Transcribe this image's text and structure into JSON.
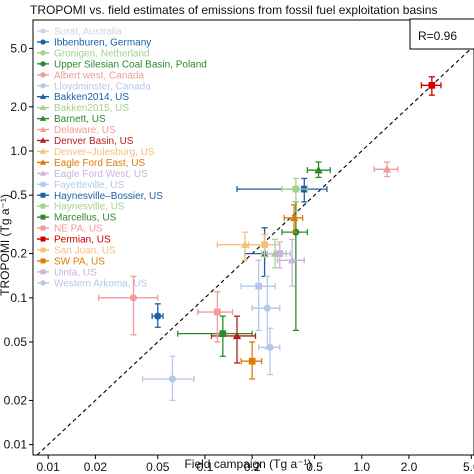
{
  "chart_data": {
    "type": "scatter",
    "title": "TROPOMI vs. field estimates of emissions from fossil fuel exploitation basins",
    "xlabel": "Field campaign (Tg a⁻¹)",
    "ylabel": "TROPOMI (Tg a⁻¹)",
    "x_scale": "log",
    "y_scale": "log",
    "xlim": [
      0.008,
      5.2
    ],
    "ylim": [
      0.0085,
      7.8
    ],
    "x_ticks": [
      0.01,
      0.02,
      0.05,
      0.1,
      0.2,
      0.5,
      1.0,
      2.0,
      5.0
    ],
    "x_tick_labels": [
      "0.01",
      "0.02",
      "0.05",
      "0.1",
      "0.2",
      "0.5",
      "1.0",
      "2.0",
      "5.0"
    ],
    "y_ticks": [
      0.01,
      0.02,
      0.05,
      0.1,
      0.2,
      0.5,
      1.0,
      2.0,
      5.0
    ],
    "y_tick_labels": [
      "0.01",
      "0.02",
      "0.05",
      "0.1",
      "0.2",
      "0.5",
      "1.0",
      "2.0",
      "5.0"
    ],
    "reference_line": "1:1",
    "annotation": "R=0.96",
    "legend_position": "top-left",
    "grid": false,
    "series": [
      {
        "name": "Surat, Australia",
        "color": "#c8d6ea",
        "marker": "circle",
        "points": []
      },
      {
        "name": "Ibbenburen, Germany",
        "color": "#1f5fa8",
        "marker": "circle",
        "points": [
          {
            "x": 0.05,
            "y": 0.075,
            "xerr": [
              0.046,
              0.054
            ],
            "yerr": [
              0.063,
              0.091
            ]
          }
        ]
      },
      {
        "name": "Gronigen, Netherland",
        "color": "#a6d28c",
        "marker": "circle",
        "points": []
      },
      {
        "name": "Upper Silesian Coal Basin, Poland",
        "color": "#2a8a2a",
        "marker": "circle",
        "points": [
          {
            "x": 0.38,
            "y": 0.28,
            "xerr": [
              0.31,
              0.45
            ],
            "yerr": [
              0.06,
              0.45
            ]
          }
        ]
      },
      {
        "name": "Albert west, Canada",
        "color": "#f19a9a",
        "marker": "circle",
        "points": [
          {
            "x": 0.035,
            "y": 0.1,
            "xerr": [
              0.021,
              0.05
            ],
            "yerr": [
              0.056,
              0.14
            ]
          }
        ]
      },
      {
        "name": "Lloydminster, Canada",
        "color": "#b3c8ea",
        "marker": "circle",
        "points": [
          {
            "x": 0.062,
            "y": 0.028,
            "xerr": [
              0.04,
              0.085
            ],
            "yerr": [
              0.02,
              0.04
            ]
          }
        ]
      },
      {
        "name": "Bakken2014, US",
        "color": "#1f5fa8",
        "marker": "triangle",
        "points": [
          {
            "x": 0.24,
            "y": 0.2,
            "xerr": [
              0.18,
              0.3
            ],
            "yerr": [
              0.14,
              0.3
            ]
          }
        ]
      },
      {
        "name": "Bakken2015, US",
        "color": "#a6d28c",
        "marker": "triangle",
        "points": [
          {
            "x": 0.28,
            "y": 0.2,
            "xerr": [
              0.23,
              0.33
            ],
            "yerr": [
              0.16,
              0.25
            ]
          }
        ]
      },
      {
        "name": "Barnett, US",
        "color": "#2a8a2a",
        "marker": "triangle",
        "points": [
          {
            "x": 0.53,
            "y": 0.74,
            "xerr": [
              0.45,
              0.63
            ],
            "yerr": [
              0.66,
              0.84
            ]
          }
        ]
      },
      {
        "name": "Delaware, US",
        "color": "#f19a9a",
        "marker": "triangle",
        "points": [
          {
            "x": 1.45,
            "y": 0.75,
            "xerr": [
              1.2,
              1.7
            ],
            "yerr": [
              0.67,
              0.84
            ]
          }
        ]
      },
      {
        "name": "Denver Basin, US",
        "color": "#b51e1e",
        "marker": "triangle",
        "points": [
          {
            "x": 0.16,
            "y": 0.055,
            "xerr": [
              0.11,
              0.21
            ],
            "yerr": [
              0.036,
              0.075
            ]
          }
        ]
      },
      {
        "name": "Denver–Julesburg, US",
        "color": "#f5c07a",
        "marker": "triangle",
        "points": [
          {
            "x": 0.18,
            "y": 0.23,
            "xerr": [
              0.12,
              0.24
            ],
            "yerr": [
              0.18,
              0.28
            ]
          }
        ]
      },
      {
        "name": "Eagle Ford East, US",
        "color": "#e07b00",
        "marker": "triangle",
        "points": [
          {
            "x": 0.37,
            "y": 0.35,
            "xerr": [
              0.32,
              0.42
            ],
            "yerr": [
              0.28,
              0.43
            ]
          }
        ]
      },
      {
        "name": "Eagle Ford West, US",
        "color": "#c9b4da",
        "marker": "triangle",
        "points": [
          {
            "x": 0.36,
            "y": 0.18,
            "xerr": [
              0.29,
              0.43
            ],
            "yerr": [
              0.12,
              0.25
            ]
          }
        ]
      },
      {
        "name": "Fayetteville, US",
        "color": "#b3c8ea",
        "marker": "square",
        "points": [
          {
            "x": 0.22,
            "y": 0.12,
            "xerr": [
              0.17,
              0.28
            ],
            "yerr": [
              0.06,
              0.18
            ]
          }
        ]
      },
      {
        "name": "Haynesville–Bossier, US",
        "color": "#1f5fa8",
        "marker": "square",
        "points": [
          {
            "x": 0.43,
            "y": 0.55,
            "xerr": [
              0.16,
              0.6
            ],
            "yerr": [
              0.45,
              0.65
            ]
          }
        ]
      },
      {
        "name": "Haynesville, US",
        "color": "#a6d28c",
        "marker": "square",
        "points": [
          {
            "x": 0.38,
            "y": 0.55,
            "xerr": [
              0.31,
              0.45
            ],
            "yerr": [
              0.45,
              0.65
            ]
          }
        ]
      },
      {
        "name": "Marcellus, US",
        "color": "#2a8a2a",
        "marker": "square",
        "points": [
          {
            "x": 0.13,
            "y": 0.057,
            "xerr": [
              0.067,
              0.2
            ],
            "yerr": [
              0.04,
              0.075
            ]
          }
        ]
      },
      {
        "name": "NE PA, US",
        "color": "#f19a9a",
        "marker": "square",
        "points": [
          {
            "x": 0.12,
            "y": 0.08,
            "xerr": [
              0.09,
              0.15
            ],
            "yerr": [
              0.05,
              0.11
            ]
          }
        ]
      },
      {
        "name": "Permian, US",
        "color": "#cc0000",
        "marker": "square",
        "points": [
          {
            "x": 2.8,
            "y": 2.8,
            "xerr": [
              2.4,
              3.2
            ],
            "yerr": [
              2.4,
              3.2
            ]
          }
        ]
      },
      {
        "name": "San Juan, US",
        "color": "#f5c07a",
        "marker": "square",
        "points": [
          {
            "x": 0.24,
            "y": 0.23,
            "xerr": [
              0.19,
              0.3
            ],
            "yerr": [
              0.19,
              0.27
            ]
          }
        ]
      },
      {
        "name": "SW PA, US",
        "color": "#e07b00",
        "marker": "square",
        "points": [
          {
            "x": 0.2,
            "y": 0.037,
            "xerr": [
              0.17,
              0.23
            ],
            "yerr": [
              0.028,
              0.05
            ]
          }
        ]
      },
      {
        "name": "Uinta, US",
        "color": "#c9b4da",
        "marker": "square",
        "points": [
          {
            "x": 0.3,
            "y": 0.2,
            "xerr": [
              0.25,
              0.35
            ],
            "yerr": [
              0.16,
              0.24
            ]
          }
        ]
      },
      {
        "name": "Western Arkoma, US",
        "color": "#b3c8ea",
        "marker": "circle",
        "points": [
          {
            "x": 0.25,
            "y": 0.085,
            "xerr": [
              0.2,
              0.3
            ],
            "yerr": [
              0.045,
              0.14
            ]
          },
          {
            "x": 0.26,
            "y": 0.046,
            "xerr": [
              0.22,
              0.3
            ],
            "yerr": [
              0.03,
              0.062
            ]
          }
        ]
      }
    ]
  }
}
